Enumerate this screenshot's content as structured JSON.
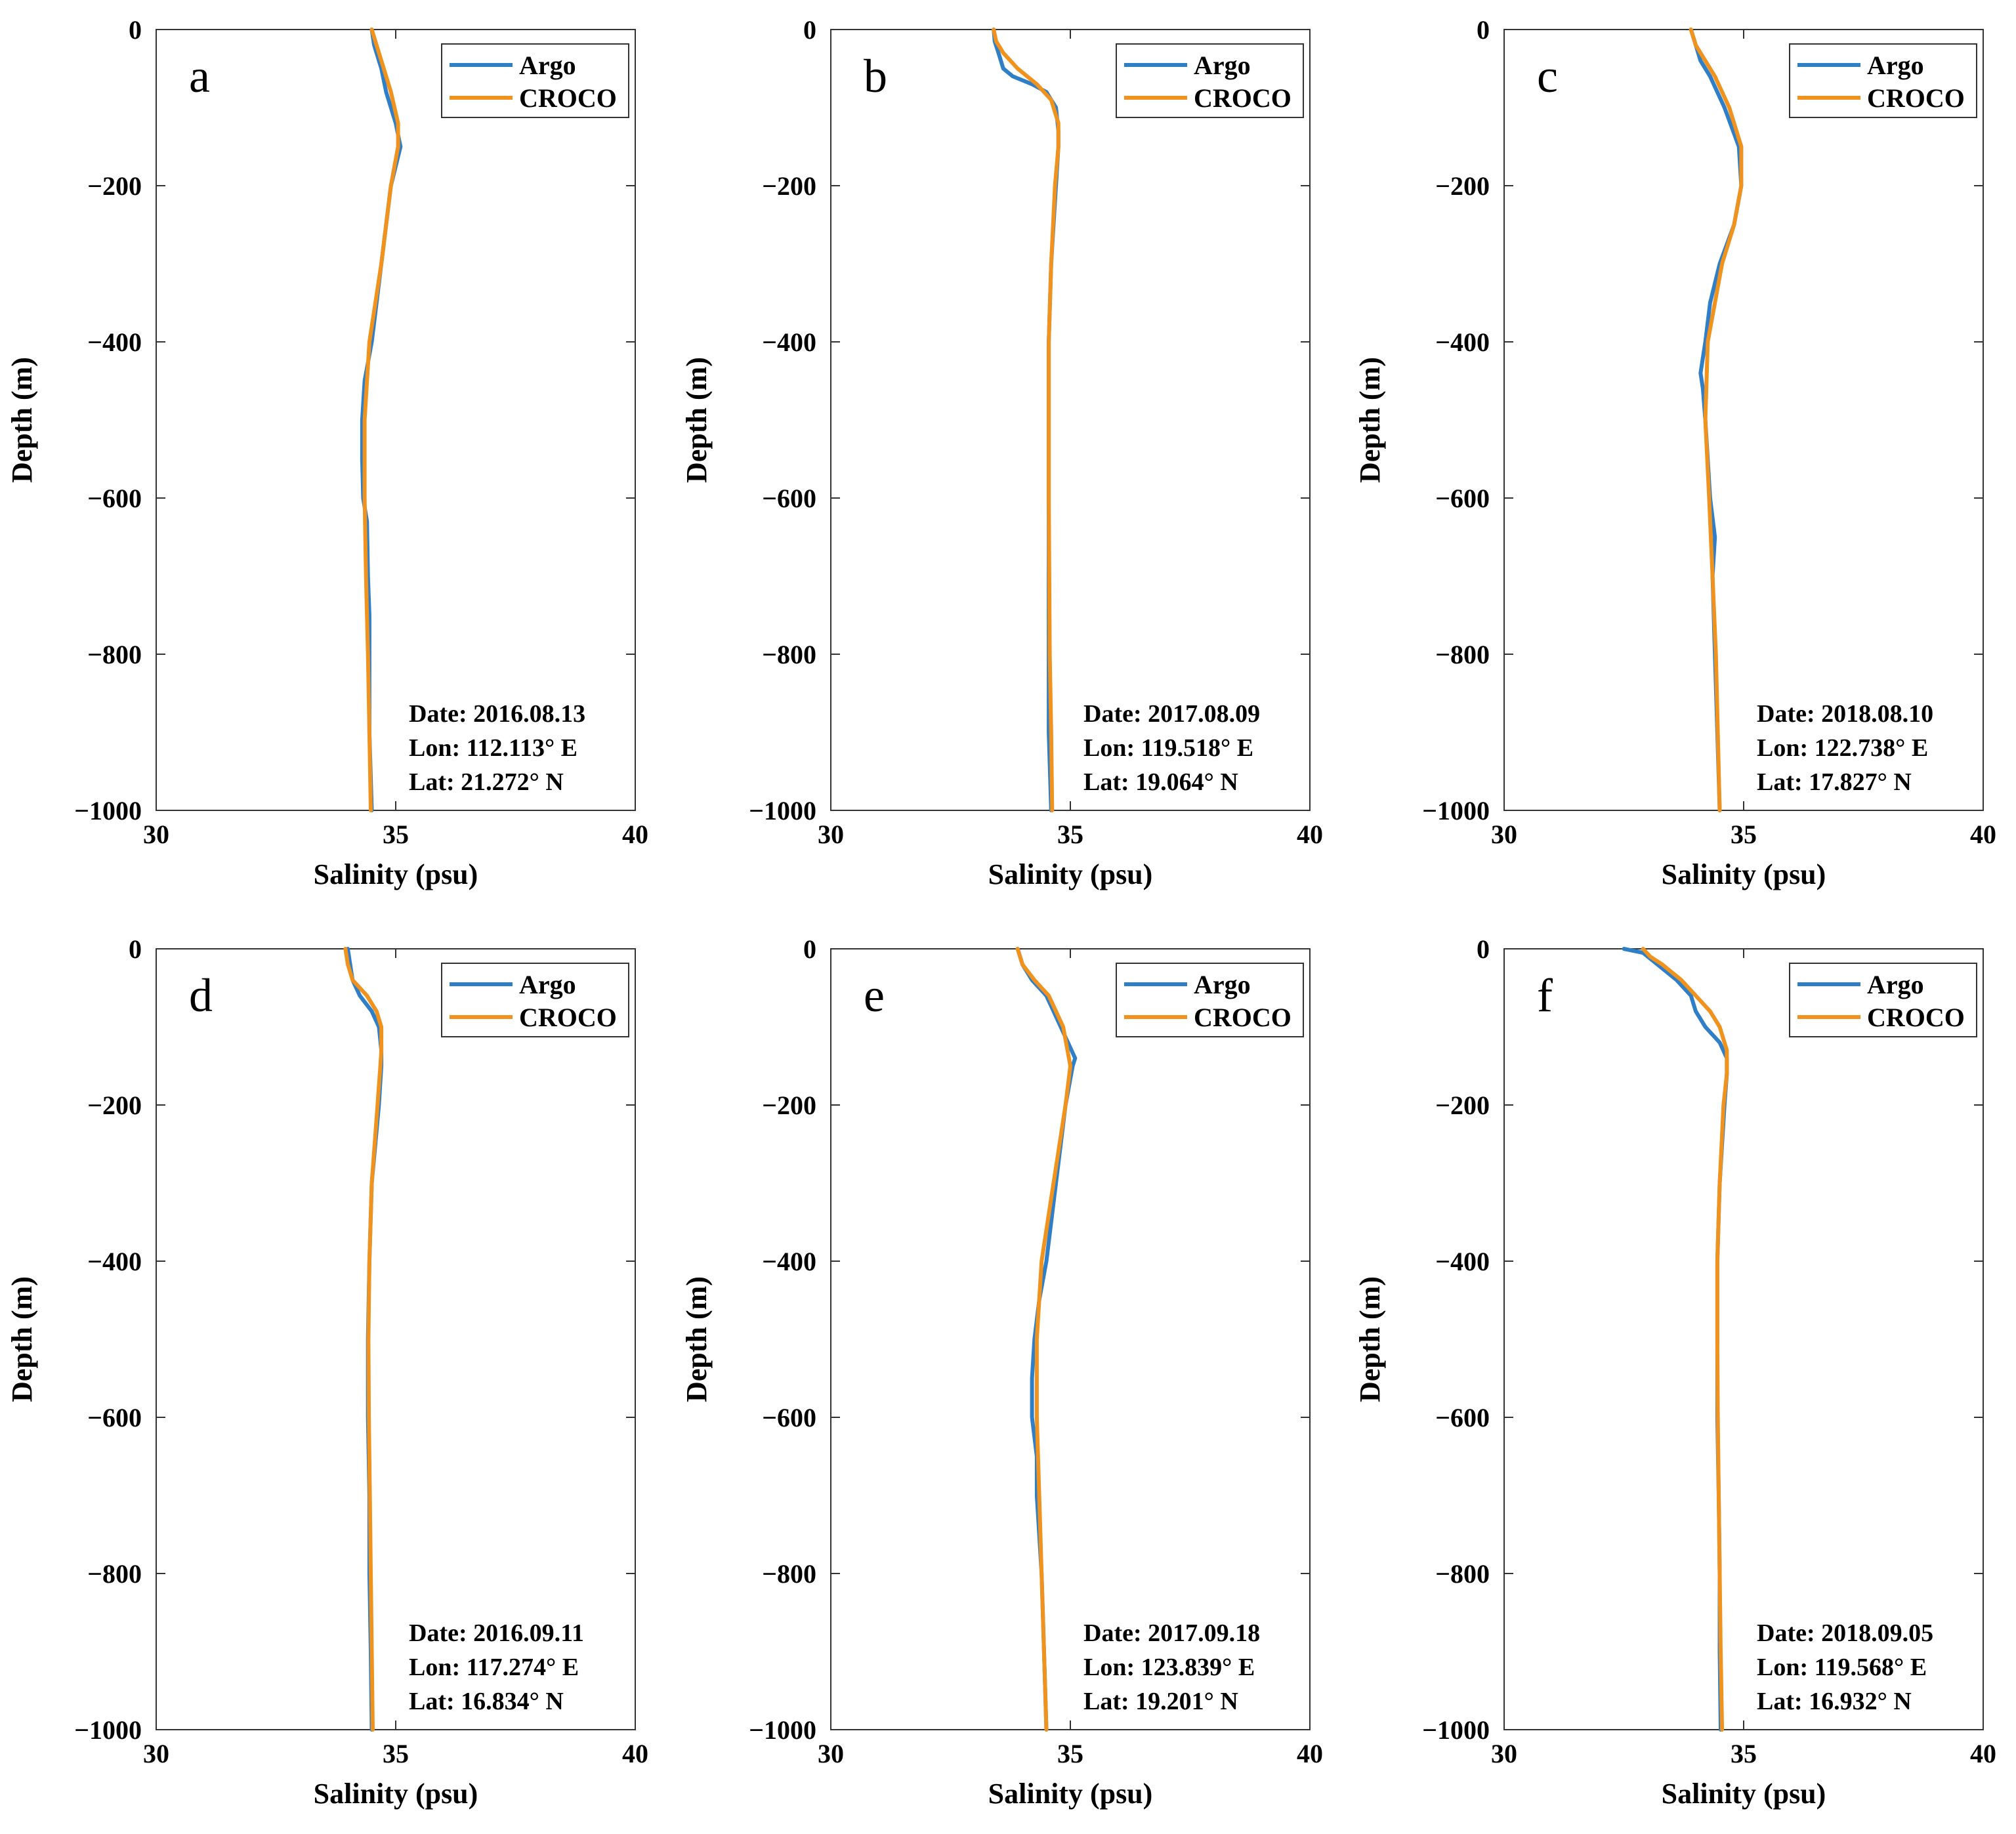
{
  "colors": {
    "argo": "#2f7fc8",
    "croco": "#f0921e",
    "axes": "#333333"
  },
  "chart_data": [
    {
      "type": "line",
      "panel_label": "a",
      "xlabel": "Salinity (psu)",
      "ylabel": "Depth (m)",
      "xlim": [
        30,
        40
      ],
      "ylim": [
        -1000,
        0
      ],
      "xticks": [
        "30",
        "35",
        "40"
      ],
      "yticks": [
        "0",
        "−200",
        "−400",
        "−600",
        "−800",
        "−1000"
      ],
      "legend_position": "top-right",
      "info": [
        "Date: 2016.08.13",
        "Lon: 112.113°  E",
        "Lat: 21.272°  N"
      ],
      "series": [
        {
          "name": "Argo",
          "depth": [
            0,
            -20,
            -50,
            -80,
            -120,
            -150,
            -200,
            -300,
            -350,
            -400,
            -450,
            -500,
            -550,
            -600,
            -630,
            -700,
            -750,
            -800,
            -900,
            -1000
          ],
          "salinity": [
            34.5,
            34.55,
            34.7,
            34.8,
            35.0,
            35.1,
            34.9,
            34.7,
            34.6,
            34.5,
            34.35,
            34.3,
            34.3,
            34.32,
            34.4,
            34.42,
            34.45,
            34.45,
            34.45,
            34.5
          ]
        },
        {
          "name": "CROCO",
          "depth": [
            0,
            -20,
            -50,
            -80,
            -120,
            -150,
            -200,
            -300,
            -400,
            -500,
            -600,
            -700,
            -800,
            -900,
            -1000
          ],
          "salinity": [
            34.5,
            34.6,
            34.75,
            34.9,
            35.05,
            35.05,
            34.9,
            34.7,
            34.45,
            34.35,
            34.35,
            34.38,
            34.42,
            34.45,
            34.48
          ]
        }
      ]
    },
    {
      "type": "line",
      "panel_label": "b",
      "xlabel": "Salinity (psu)",
      "ylabel": "Depth (m)",
      "xlim": [
        30,
        40
      ],
      "ylim": [
        -1000,
        0
      ],
      "xticks": [
        "30",
        "35",
        "40"
      ],
      "yticks": [
        "0",
        "−200",
        "−400",
        "−600",
        "−800",
        "−1000"
      ],
      "legend_position": "top-right",
      "info": [
        "Date: 2017.08.09",
        "Lon: 119.518°  E",
        "Lat: 19.064°  N"
      ],
      "series": [
        {
          "name": "Argo",
          "depth": [
            0,
            -15,
            -30,
            -50,
            -60,
            -70,
            -80,
            -100,
            -130,
            -150,
            -200,
            -250,
            -300,
            -400,
            -500,
            -600,
            -700,
            -800,
            -900,
            -1000
          ],
          "salinity": [
            33.4,
            33.42,
            33.5,
            33.6,
            33.8,
            34.2,
            34.5,
            34.7,
            34.75,
            34.75,
            34.7,
            34.65,
            34.6,
            34.55,
            34.55,
            34.55,
            34.55,
            34.55,
            34.55,
            34.6
          ]
        },
        {
          "name": "CROCO",
          "depth": [
            0,
            -15,
            -30,
            -50,
            -70,
            -90,
            -120,
            -150,
            -200,
            -300,
            -400,
            -500,
            -600,
            -700,
            -800,
            -900,
            -1000
          ],
          "salinity": [
            33.4,
            33.45,
            33.6,
            33.9,
            34.3,
            34.6,
            34.75,
            34.75,
            34.68,
            34.6,
            34.55,
            34.55,
            34.55,
            34.56,
            34.57,
            34.6,
            34.62
          ]
        }
      ]
    },
    {
      "type": "line",
      "panel_label": "c",
      "xlabel": "Salinity (psu)",
      "ylabel": "Depth (m)",
      "xlim": [
        30,
        40
      ],
      "ylim": [
        -1000,
        0
      ],
      "xticks": [
        "30",
        "35",
        "40"
      ],
      "yticks": [
        "0",
        "−200",
        "−400",
        "−600",
        "−800",
        "−1000"
      ],
      "legend_position": "top-right",
      "info": [
        "Date: 2018.08.10",
        "Lon: 122.738°  E",
        "Lat: 17.827°  N"
      ],
      "series": [
        {
          "name": "Argo",
          "depth": [
            0,
            -20,
            -40,
            -60,
            -100,
            -150,
            -200,
            -250,
            -300,
            -350,
            -400,
            -440,
            -460,
            -500,
            -600,
            -650,
            -700,
            -800,
            -900,
            -1000
          ],
          "salinity": [
            33.9,
            34.0,
            34.1,
            34.3,
            34.6,
            34.9,
            34.95,
            34.8,
            34.5,
            34.3,
            34.2,
            34.1,
            34.15,
            34.2,
            34.3,
            34.4,
            34.35,
            34.4,
            34.45,
            34.5
          ]
        },
        {
          "name": "CROCO",
          "depth": [
            0,
            -20,
            -40,
            -60,
            -100,
            -150,
            -200,
            -250,
            -300,
            -400,
            -500,
            -600,
            -700,
            -800,
            -900,
            -1000
          ],
          "salinity": [
            33.9,
            34.0,
            34.2,
            34.4,
            34.7,
            34.95,
            34.95,
            34.8,
            34.55,
            34.25,
            34.2,
            34.28,
            34.35,
            34.42,
            34.46,
            34.5
          ]
        }
      ]
    },
    {
      "type": "line",
      "panel_label": "d",
      "xlabel": "Salinity (psu)",
      "ylabel": "Depth (m)",
      "xlim": [
        30,
        40
      ],
      "ylim": [
        -1000,
        0
      ],
      "xticks": [
        "30",
        "35",
        "40"
      ],
      "yticks": [
        "0",
        "−200",
        "−400",
        "−600",
        "−800",
        "−1000"
      ],
      "legend_position": "top-right",
      "info": [
        "Date: 2016.09.11",
        "Lon: 117.274°  E",
        "Lat: 16.834°  N"
      ],
      "series": [
        {
          "name": "Argo",
          "depth": [
            0,
            -20,
            -40,
            -60,
            -80,
            -100,
            -130,
            -150,
            -200,
            -300,
            -400,
            -500,
            -600,
            -700,
            -800,
            -900,
            -1000
          ],
          "salinity": [
            34.0,
            34.05,
            34.1,
            34.25,
            34.5,
            34.65,
            34.7,
            34.7,
            34.65,
            34.5,
            34.45,
            34.42,
            34.42,
            34.45,
            34.45,
            34.48,
            34.5
          ]
        },
        {
          "name": "CROCO",
          "depth": [
            0,
            -20,
            -40,
            -60,
            -80,
            -100,
            -130,
            -150,
            -200,
            -300,
            -400,
            -500,
            -600,
            -700,
            -800,
            -900,
            -1000
          ],
          "salinity": [
            33.95,
            34.0,
            34.1,
            34.4,
            34.6,
            34.7,
            34.7,
            34.68,
            34.62,
            34.5,
            34.45,
            34.43,
            34.44,
            34.46,
            34.48,
            34.5,
            34.52
          ]
        }
      ]
    },
    {
      "type": "line",
      "panel_label": "e",
      "xlabel": "Salinity (psu)",
      "ylabel": "Depth (m)",
      "xlim": [
        30,
        40
      ],
      "ylim": [
        -1000,
        0
      ],
      "xticks": [
        "30",
        "35",
        "40"
      ],
      "yticks": [
        "0",
        "−200",
        "−400",
        "−600",
        "−800",
        "−1000"
      ],
      "legend_position": "top-right",
      "info": [
        "Date: 2017.09.18",
        "Lon: 123.839°  E",
        "Lat: 19.201°  N"
      ],
      "series": [
        {
          "name": "Argo",
          "depth": [
            0,
            -20,
            -40,
            -60,
            -100,
            -140,
            -150,
            -200,
            -250,
            -300,
            -400,
            -450,
            -500,
            -550,
            -600,
            -650,
            -700,
            -800,
            -900,
            -1000
          ],
          "salinity": [
            33.9,
            34.0,
            34.2,
            34.5,
            34.8,
            35.1,
            35.05,
            34.9,
            34.8,
            34.7,
            34.5,
            34.35,
            34.25,
            34.2,
            34.2,
            34.3,
            34.3,
            34.4,
            34.45,
            34.5
          ]
        },
        {
          "name": "CROCO",
          "depth": [
            0,
            -20,
            -40,
            -60,
            -100,
            -150,
            -200,
            -300,
            -400,
            -500,
            -600,
            -700,
            -800,
            -900,
            -1000
          ],
          "salinity": [
            33.9,
            34.0,
            34.25,
            34.55,
            34.85,
            35.0,
            34.9,
            34.65,
            34.4,
            34.3,
            34.3,
            34.35,
            34.4,
            34.45,
            34.5
          ]
        }
      ]
    },
    {
      "type": "line",
      "panel_label": "f",
      "xlabel": "Salinity (psu)",
      "ylabel": "Depth (m)",
      "xlim": [
        30,
        40
      ],
      "ylim": [
        -1000,
        0
      ],
      "xticks": [
        "30",
        "35",
        "40"
      ],
      "yticks": [
        "0",
        "−200",
        "−400",
        "−600",
        "−800",
        "−1000"
      ],
      "legend_position": "top-right",
      "info": [
        "Date: 2018.09.05",
        "Lon: 119.568°  E",
        "Lat: 16.932°  N"
      ],
      "series": [
        {
          "name": "Argo",
          "depth": [
            0,
            -5,
            -20,
            -40,
            -60,
            -80,
            -100,
            -120,
            -140,
            -160,
            -200,
            -300,
            -400,
            -500,
            -600,
            -700,
            -800,
            -900,
            -1000
          ],
          "salinity": [
            32.5,
            32.9,
            33.2,
            33.6,
            33.9,
            34.0,
            34.2,
            34.5,
            34.65,
            34.65,
            34.6,
            34.5,
            34.45,
            34.45,
            34.45,
            34.48,
            34.5,
            34.5,
            34.52
          ]
        },
        {
          "name": "CROCO",
          "depth": [
            0,
            -10,
            -20,
            -40,
            -60,
            -80,
            -100,
            -130,
            -160,
            -200,
            -300,
            -400,
            -500,
            -600,
            -700,
            -800,
            -900,
            -1000
          ],
          "salinity": [
            32.9,
            33.05,
            33.3,
            33.7,
            34.0,
            34.3,
            34.5,
            34.65,
            34.65,
            34.58,
            34.5,
            34.45,
            34.45,
            34.46,
            34.48,
            34.5,
            34.52,
            34.55
          ]
        }
      ]
    }
  ]
}
